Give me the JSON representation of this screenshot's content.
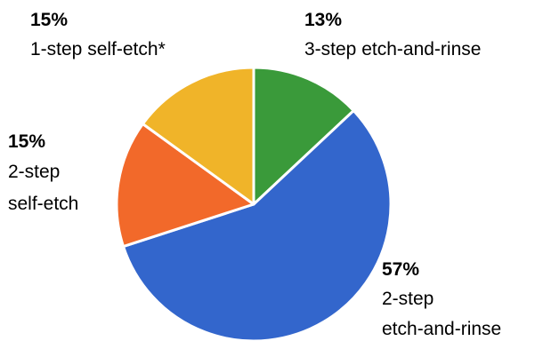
{
  "chart_data": {
    "type": "pie",
    "slices": [
      {
        "name": "3-step etch-and-rinse",
        "label_lines": [
          "3-step etch-and-rinse"
        ],
        "percent_label": "13%",
        "value": 13,
        "color": "#3a9a3a"
      },
      {
        "name": "2-step etch-and-rinse",
        "label_lines": [
          "2-step",
          "etch-and-rinse"
        ],
        "percent_label": "57%",
        "value": 57,
        "color": "#3366cc"
      },
      {
        "name": "2-step self-etch",
        "label_lines": [
          "2-step",
          "self-etch"
        ],
        "percent_label": "15%",
        "value": 15,
        "color": "#f2692a"
      },
      {
        "name": "1-step self-etch*",
        "label_lines": [
          "1-step self-etch*"
        ],
        "percent_label": "15%",
        "value": 15,
        "color": "#f0b429"
      }
    ],
    "legend": "none",
    "grid": false
  }
}
